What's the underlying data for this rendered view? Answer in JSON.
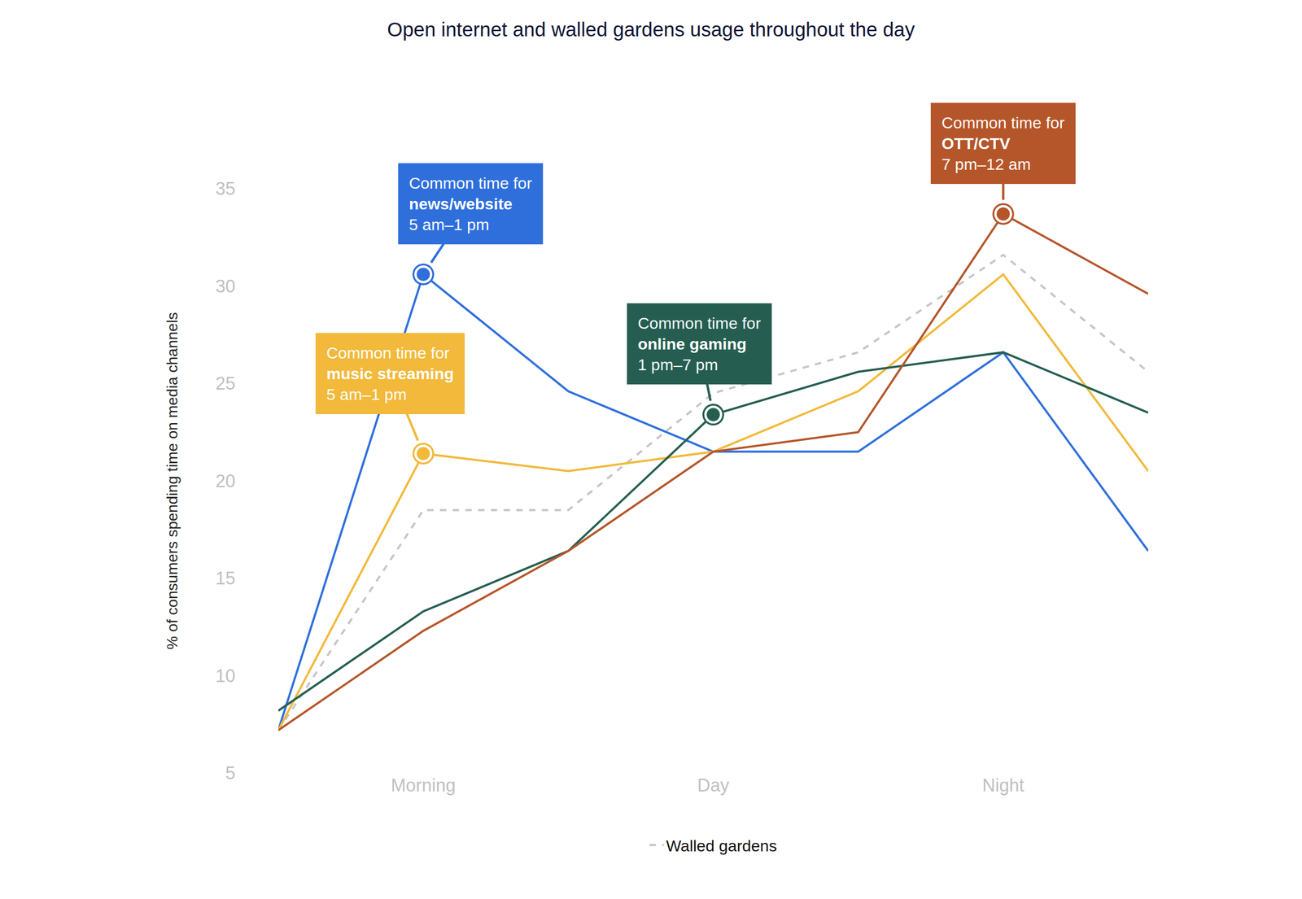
{
  "chart_data": {
    "type": "line",
    "title": "Open internet and walled gardens usage throughout the day",
    "y_label": "% of consumers spending time on media channels",
    "categories": [
      null,
      "Morning",
      null,
      "Day",
      null,
      "Night",
      null
    ],
    "ylim": [
      5,
      35
    ],
    "yticks": [
      5,
      10,
      15,
      20,
      25,
      30,
      35
    ],
    "grid": false,
    "legend": "bottom",
    "series": [
      {
        "color": "#c6c6c6",
        "name": "Walled gardens",
        "line_style": "dashed",
        "values": [
          7.2,
          18.5,
          18.5,
          24.5,
          26.6,
          31.6,
          25.6
        ]
      },
      {
        "color": "#2f6fdc",
        "line_style": "solid",
        "values": [
          7.2,
          30.6,
          24.6,
          21.5,
          21.5,
          26.6,
          16.4
        ],
        "annotation": {
          "text": [
            "Common time for",
            "news/website",
            "5 am–1 pm"
          ],
          "point": 1
        }
      },
      {
        "color": "#f2b93b",
        "line_style": "solid",
        "values": [
          7.2,
          21.4,
          20.5,
          21.5,
          24.6,
          30.6,
          20.5
        ],
        "annotation": {
          "text": [
            "Common time for",
            "music streaming",
            "5 am–1 pm"
          ],
          "point": 1
        }
      },
      {
        "color": "#255e50",
        "line_style": "solid",
        "values": [
          8.2,
          13.3,
          16.4,
          23.4,
          25.6,
          26.6,
          23.5
        ],
        "annotation": {
          "text": [
            "Common time for",
            "online gaming",
            "1 pm–7 pm"
          ],
          "point": 3
        }
      },
      {
        "color": "#b5562a",
        "line_style": "solid",
        "values": [
          7.2,
          12.3,
          16.4,
          21.5,
          22.5,
          33.7,
          29.6
        ],
        "annotation": {
          "text": [
            "Common time for",
            "OTT/CTV",
            "7 pm–12 am"
          ],
          "point": 5
        }
      }
    ]
  }
}
